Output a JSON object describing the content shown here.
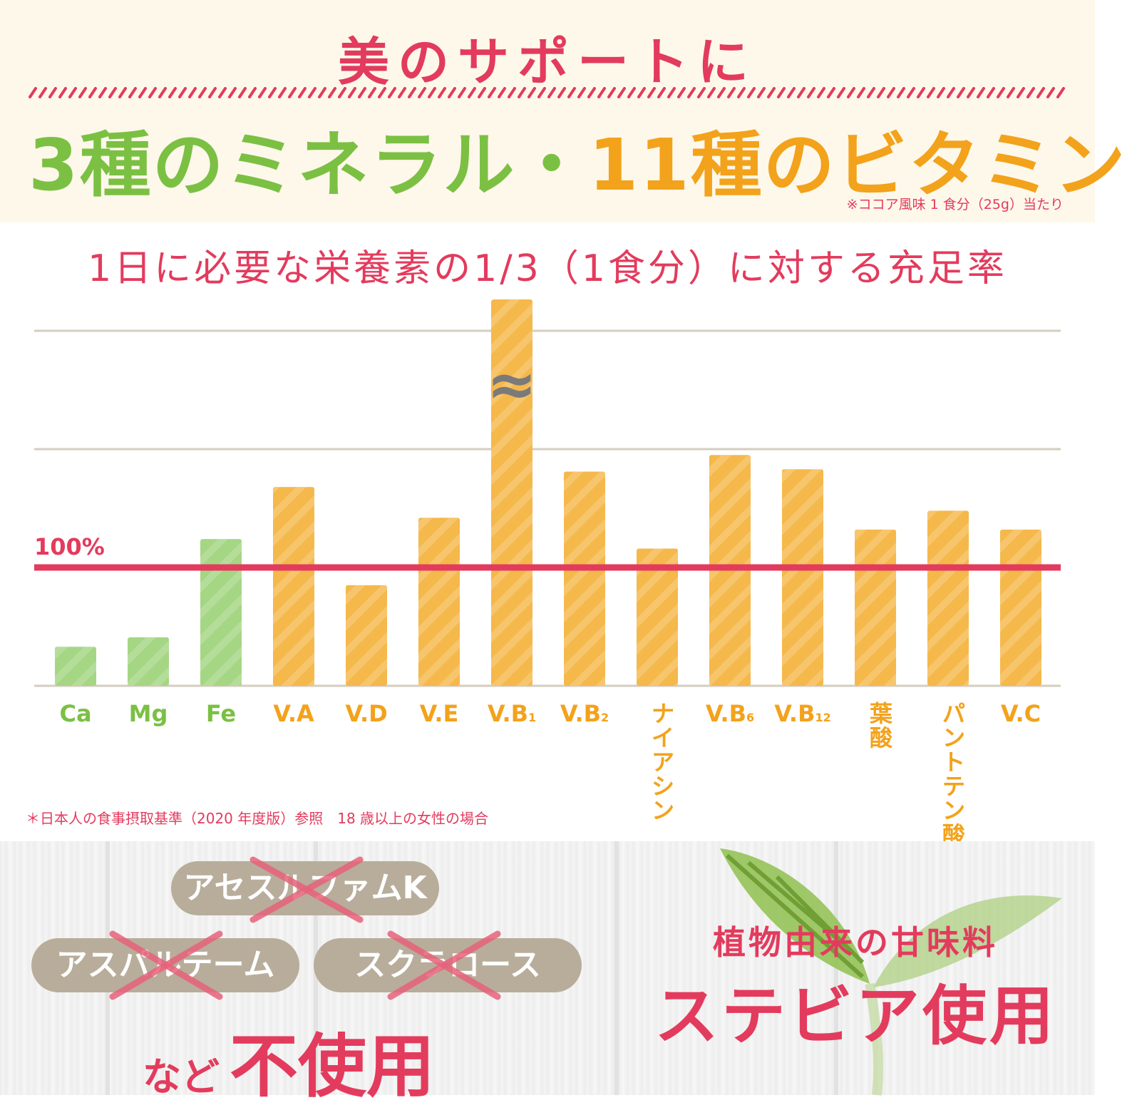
{
  "header": {
    "headline": "美のサポートに",
    "minerals": "3種のミネラル",
    "dot": "・",
    "vitamins": "11種のビタミン",
    "note": "※ココア風味 1 食分（25g）当たり"
  },
  "chart_title": "1日に必要な栄養素の1/3（1食分）に対する充足率",
  "footnote": "＊日本人の食事摂取基準（2020 年度版）参照　18 歳以上の女性の場合",
  "colors": {
    "mineral": "#7bc043",
    "mineral_bar": "#a5d684",
    "vitamin": "#f3a21b",
    "vitamin_bar": "#f5b84b",
    "accent": "#e33b5d",
    "grid": "#d6cdbf",
    "pill": "#b8ad9b"
  },
  "chart_data": {
    "type": "bar",
    "categories": [
      "Ca",
      "Mg",
      "Fe",
      "V.A",
      "V.D",
      "V.E",
      "V.B1",
      "V.B2",
      "ナイアシン",
      "V.B6",
      "V.B12",
      "葉酸",
      "パントテン酸",
      "V.C"
    ],
    "category_labels": [
      {
        "main": "Ca",
        "sub": ""
      },
      {
        "main": "Mg",
        "sub": ""
      },
      {
        "main": "Fe",
        "sub": ""
      },
      {
        "main": "V.A",
        "sub": ""
      },
      {
        "main": "V.D",
        "sub": ""
      },
      {
        "main": "V.E",
        "sub": ""
      },
      {
        "main": "V.B",
        "sub": "1"
      },
      {
        "main": "V.B",
        "sub": "2"
      },
      {
        "main": "ナイアシン",
        "sub": "",
        "vertical": true
      },
      {
        "main": "V.B",
        "sub": "6"
      },
      {
        "main": "V.B",
        "sub": "12"
      },
      {
        "main": "葉酸",
        "sub": "",
        "vertical": true
      },
      {
        "main": "パントテン酸",
        "sub": "",
        "vertical": true
      },
      {
        "main": "V.C",
        "sub": ""
      }
    ],
    "groups": [
      "mineral",
      "mineral",
      "mineral",
      "vitamin",
      "vitamin",
      "vitamin",
      "vitamin",
      "vitamin",
      "vitamin",
      "vitamin",
      "vitamin",
      "vitamin",
      "vitamin",
      "vitamin"
    ],
    "values": [
      33,
      41,
      124,
      168,
      85,
      142,
      999,
      181,
      116,
      195,
      183,
      132,
      148,
      132
    ],
    "axis_break": {
      "category": "V.B1",
      "symbol": "≈"
    },
    "reference_line": {
      "value": 100,
      "label": "100%"
    },
    "ylim": [
      0,
      300
    ],
    "grid": true,
    "title": "1日に必要な栄養素の1/3（1食分）に対する充足率"
  },
  "bottom": {
    "pills": [
      "アセスルファムK",
      "アスパルテーム",
      "スクラロース"
    ],
    "nado": "など",
    "fushiyou": "不使用",
    "plant_sub": "植物由来の甘味料",
    "plant_main": "ステビア使用"
  }
}
